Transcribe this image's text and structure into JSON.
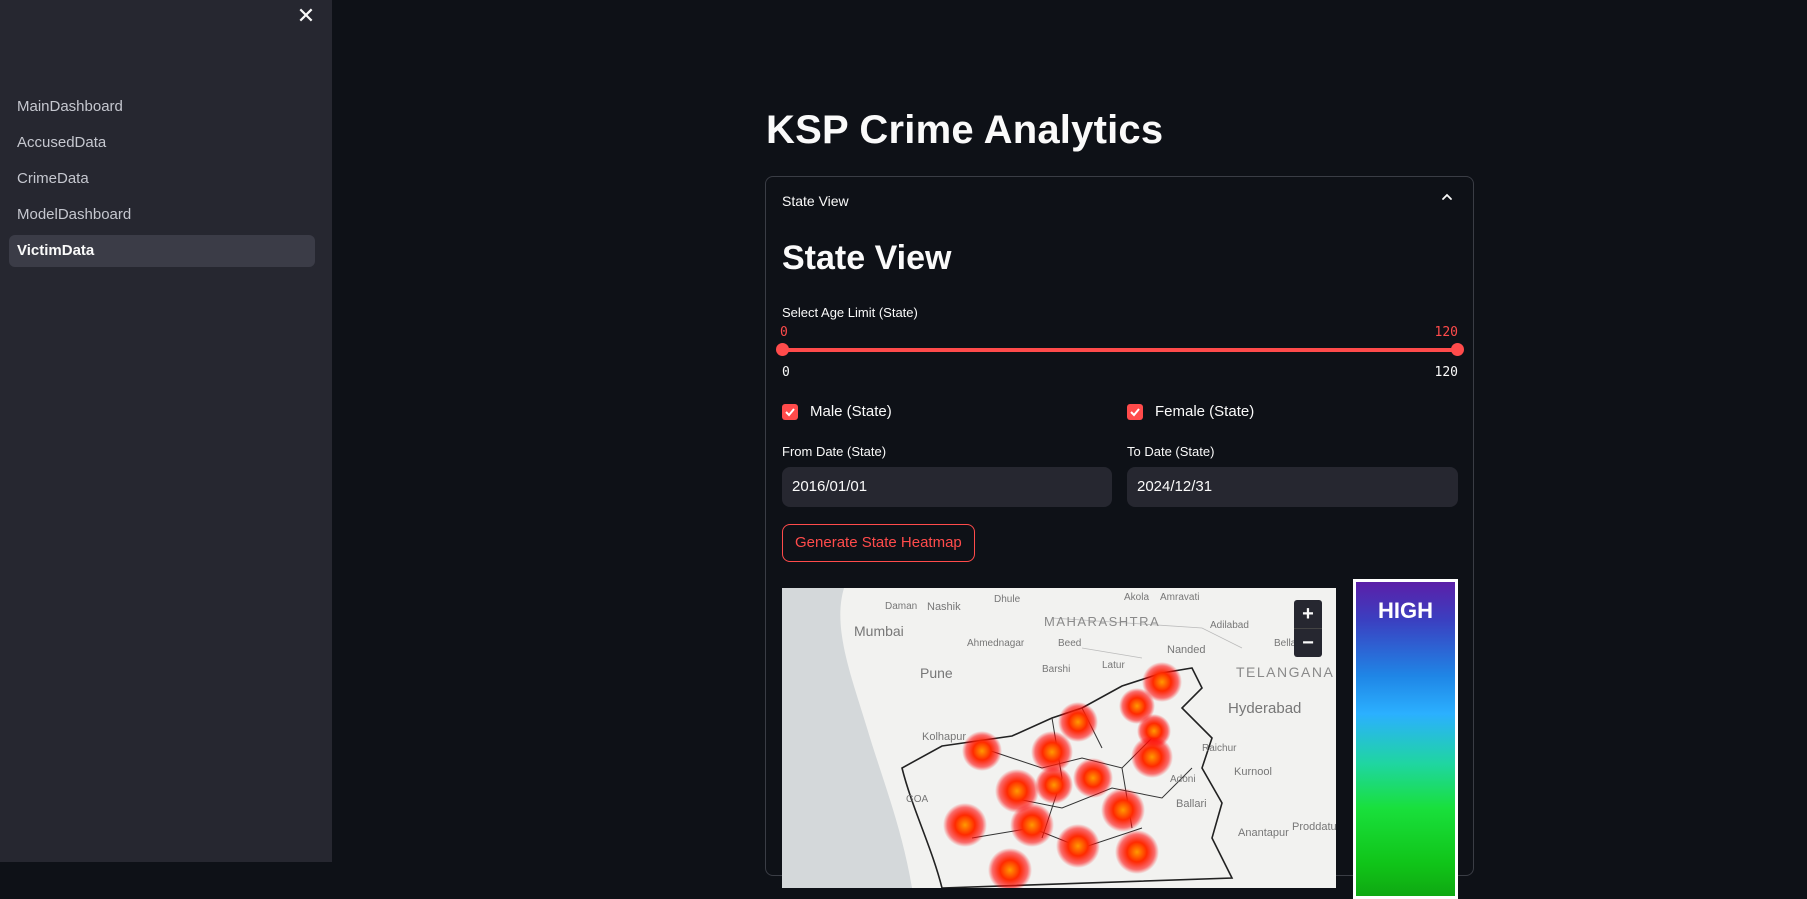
{
  "sidebar": {
    "close_glyph": "✕",
    "items": [
      {
        "label": "MainDashboard",
        "active": false
      },
      {
        "label": "AccusedData",
        "active": false
      },
      {
        "label": "CrimeData",
        "active": false
      },
      {
        "label": "ModelDashboard",
        "active": false
      },
      {
        "label": "VictimData",
        "active": true
      }
    ]
  },
  "main": {
    "title": "KSP Crime Analytics",
    "expander": {
      "header": "State View",
      "section_title": "State View",
      "age_slider": {
        "label": "Select Age Limit (State)",
        "value_low": "0",
        "value_high": "120",
        "min": "0",
        "max": "120"
      },
      "male_checkbox": {
        "label": "Male (State)",
        "checked": true
      },
      "female_checkbox": {
        "label": "Female (State)",
        "checked": true
      },
      "from_date": {
        "label": "From Date (State)",
        "value": "2016/01/01"
      },
      "to_date": {
        "label": "To Date (State)",
        "value": "2024/12/31"
      },
      "generate_button": "Generate State Heatmap",
      "map": {
        "place_labels": [
          "Daman",
          "Nashik",
          "Dhule",
          "Akola",
          "Amravati",
          "Mumbai",
          "MAHARASHTRA",
          "Adilabad",
          "Ahmednagar",
          "Beed",
          "Nanded",
          "Bella",
          "Pune",
          "Barshi",
          "Latur",
          "TELANGANA",
          "Hyderabad",
          "Kolhapur",
          "Raichur",
          "Kurnool",
          "GOA",
          "Adoni",
          "Ballari",
          "Anantapur",
          "Proddatur"
        ],
        "zoom_in": "+",
        "zoom_out": "−"
      },
      "legend": {
        "label": "HIGH"
      }
    }
  },
  "colors": {
    "accent": "#ff4b4b",
    "background": "#0e1117",
    "sidebar": "#262730"
  }
}
